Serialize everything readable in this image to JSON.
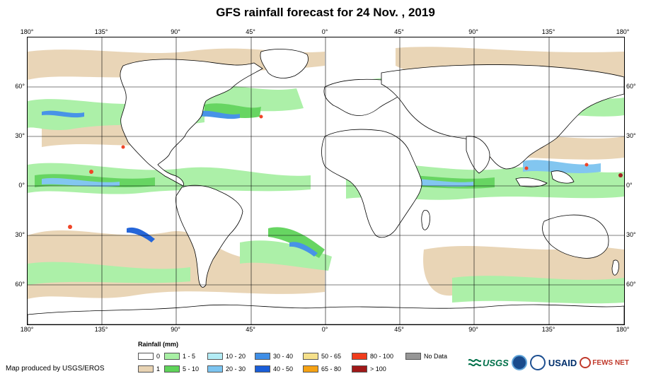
{
  "title": "GFS rainfall forecast for 24 Nov. , 2019",
  "longitude_labels": [
    "180°",
    "135°",
    "90°",
    "45°",
    "0°",
    "45°",
    "90°",
    "135°",
    "180°"
  ],
  "latitude_labels": [
    "60°",
    "30°",
    "0°",
    "30°",
    "60°"
  ],
  "legend": {
    "title": "Rainfall (mm)",
    "items": [
      {
        "label": "0",
        "color": "#ffffff"
      },
      {
        "label": "1",
        "color": "#e8d3b3"
      },
      {
        "label": "1 - 5",
        "color": "#a8f0a4"
      },
      {
        "label": "5 - 10",
        "color": "#5fd35a"
      },
      {
        "label": "10 - 20",
        "color": "#b3ecf5"
      },
      {
        "label": "20 - 30",
        "color": "#7cc4f0"
      },
      {
        "label": "30 - 40",
        "color": "#3f8ee6"
      },
      {
        "label": "40 - 50",
        "color": "#1a5ed8"
      },
      {
        "label": "50 - 65",
        "color": "#f5e08a"
      },
      {
        "label": "65 - 80",
        "color": "#f5a214"
      },
      {
        "label": "80 - 100",
        "color": "#f03c1c"
      },
      {
        "label": "> 100",
        "color": "#a01818"
      },
      {
        "label": "No Data",
        "color": "#969696"
      }
    ]
  },
  "credit": "Map produced by USGS/EROS",
  "logos": {
    "usgs": "USGS",
    "usaid": "USAID",
    "fews": "FEWS NET"
  }
}
